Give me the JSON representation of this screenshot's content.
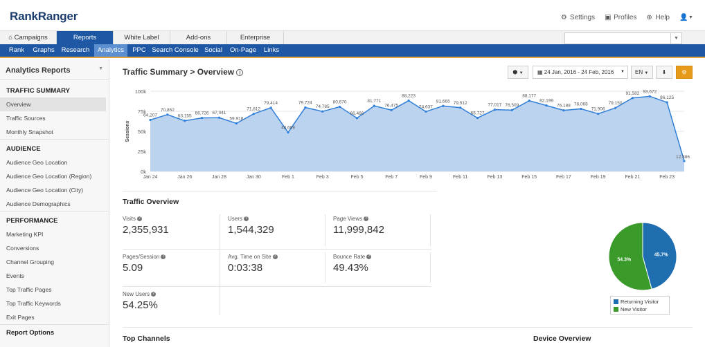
{
  "header": {
    "logo_a": "Rank",
    "logo_b": "Ranger",
    "settings": "Settings",
    "profiles": "Profiles",
    "help": "Help"
  },
  "tabs": [
    {
      "label": "Campaigns"
    },
    {
      "label": "Reports"
    },
    {
      "label": "White Label"
    },
    {
      "label": "Add-ons"
    },
    {
      "label": "Enterprise"
    }
  ],
  "subnav": [
    "Rank",
    "Graphs",
    "Research",
    "Analytics",
    "PPC",
    "Search Console",
    "Social",
    "On-Page",
    "Links"
  ],
  "sidebar": {
    "title": "Analytics Reports",
    "sections": [
      {
        "title": "TRAFFIC SUMMARY",
        "items": [
          "Overview",
          "Traffic Sources",
          "Monthly Snapshot"
        ]
      },
      {
        "title": "AUDIENCE",
        "items": [
          "Audience Geo Location",
          "Audience Geo Location (Region)",
          "Audience Geo Location (City)",
          "Audience Demographics"
        ]
      },
      {
        "title": "PERFORMANCE",
        "items": [
          "Marketing KPI",
          "Conversions",
          "Channel Grouping",
          "Events",
          "Top Traffic Pages",
          "Top Traffic Keywords",
          "Exit Pages"
        ]
      }
    ],
    "footer": "Report Options"
  },
  "main": {
    "title": "Traffic Summary > Overview",
    "date_range": "24 Jan, 2016 - 24 Feb, 2016",
    "language": "EN",
    "traffic_overview": "Traffic Overview",
    "top_channels": "Top Channels",
    "device_overview": "Device Overview"
  },
  "metrics": [
    {
      "label": "Visits",
      "value": "2,355,931"
    },
    {
      "label": "Users",
      "value": "1,544,329"
    },
    {
      "label": "Page Views",
      "value": "11,999,842"
    },
    {
      "label": "Pages/Session",
      "value": "5.09"
    },
    {
      "label": "Avg. Time on Site",
      "value": "0:03:38"
    },
    {
      "label": "Bounce Rate",
      "value": "49.43%"
    },
    {
      "label": "New Users",
      "value": "54.25%"
    }
  ],
  "chart_data": [
    {
      "type": "area",
      "ylabel": "Sessions",
      "ylim": [
        0,
        100000
      ],
      "yticks": [
        "0k",
        "25k",
        "50k",
        "75k",
        "100k"
      ],
      "xticks": [
        "Jan 24",
        "Jan 26",
        "Jan 28",
        "Jan 30",
        "Feb 1",
        "Feb 3",
        "Feb 5",
        "Feb 7",
        "Feb 9",
        "Feb 11",
        "Feb 13",
        "Feb 15",
        "Feb 17",
        "Feb 19",
        "Feb 21",
        "Feb 23"
      ],
      "color": "#2f7ed8",
      "fill": "#bcd3ef",
      "values": [
        64207,
        70852,
        63155,
        66726,
        67041,
        59918,
        71812,
        79414,
        48689,
        79724,
        74785,
        80670,
        66466,
        81771,
        76475,
        88223,
        74637,
        81665,
        79512,
        66727,
        77017,
        76509,
        88177,
        82199,
        76188,
        78068,
        71906,
        79150,
        91582,
        93672,
        86125,
        12886
      ],
      "labels": [
        "64,207",
        "70,852",
        "63,155",
        "66,726",
        "67,041",
        "59,918",
        "71,812",
        "79,414",
        "48,689",
        "79,724",
        "74,785",
        "80,670",
        "66,466",
        "81,771",
        "76,475",
        "88,223",
        "74,637",
        "81,665",
        "79,512",
        "66,727",
        "77,017",
        "76,509",
        "88,177",
        "82,199",
        "76,188",
        "78,068",
        "71,906",
        "79,150",
        "91,582",
        "93,672",
        "86,125",
        "12,886"
      ]
    },
    {
      "type": "pie",
      "slices": [
        {
          "name": "Returning Visitor",
          "value": 45.7,
          "label": "45.7%",
          "color": "#1f6fb0"
        },
        {
          "name": "New Visitor",
          "value": 54.3,
          "label": "54.3%",
          "color": "#3a9a2a"
        }
      ],
      "legend": "bottom"
    }
  ]
}
